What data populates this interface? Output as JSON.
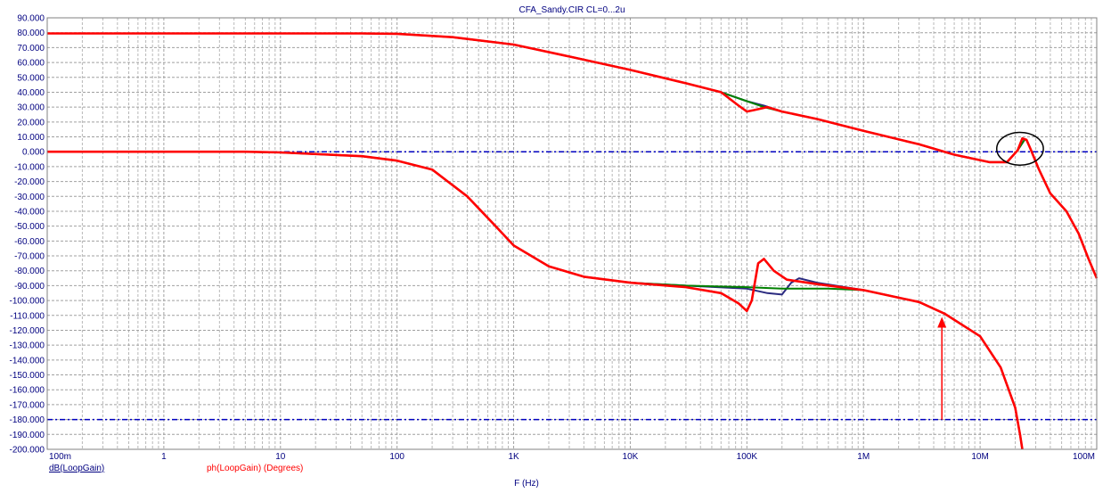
{
  "chart_data": {
    "type": "line",
    "title": "CFA_Sandy.CIR CL=0...2u",
    "xlabel": "F (Hz)",
    "x_scale": "log",
    "xlim": [
      0.1,
      100000000
    ],
    "ylim": [
      -200,
      90
    ],
    "grid": true,
    "legend": [
      {
        "text": "dB(LoopGain)",
        "color": "#000080"
      },
      {
        "text": "ph(LoopGain) (Degrees)",
        "color": "#ff0000"
      }
    ],
    "x_tick_labels": [
      {
        "value": 0.1,
        "label": "100m"
      },
      {
        "value": 1,
        "label": "1"
      },
      {
        "value": 10,
        "label": "10"
      },
      {
        "value": 100,
        "label": "100"
      },
      {
        "value": 1000,
        "label": "1K"
      },
      {
        "value": 10000,
        "label": "10K"
      },
      {
        "value": 100000,
        "label": "100K"
      },
      {
        "value": 1000000,
        "label": "1M"
      },
      {
        "value": 10000000,
        "label": "10M"
      },
      {
        "value": 100000000,
        "label": "100M"
      }
    ],
    "y_tick_labels": [
      {
        "value": 90,
        "label": "90.000"
      },
      {
        "value": 80,
        "label": "80.000"
      },
      {
        "value": 70,
        "label": "70.000"
      },
      {
        "value": 60,
        "label": "60.000"
      },
      {
        "value": 50,
        "label": "50.000"
      },
      {
        "value": 40,
        "label": "40.000"
      },
      {
        "value": 30,
        "label": "30.000"
      },
      {
        "value": 20,
        "label": "20.000"
      },
      {
        "value": 10,
        "label": "10.000"
      },
      {
        "value": 0,
        "label": "0.000"
      },
      {
        "value": -10,
        "label": "-10.000"
      },
      {
        "value": -20,
        "label": "-20.000"
      },
      {
        "value": -30,
        "label": "-30.000"
      },
      {
        "value": -40,
        "label": "-40.000"
      },
      {
        "value": -50,
        "label": "-50.000"
      },
      {
        "value": -60,
        "label": "-60.000"
      },
      {
        "value": -70,
        "label": "-70.000"
      },
      {
        "value": -80,
        "label": "-80.000"
      },
      {
        "value": -90,
        "label": "-90.000"
      },
      {
        "value": -100,
        "label": "-100.000"
      },
      {
        "value": -110,
        "label": "-110.000"
      },
      {
        "value": -120,
        "label": "-120.000"
      },
      {
        "value": -130,
        "label": "-130.000"
      },
      {
        "value": -140,
        "label": "-140.000"
      },
      {
        "value": -150,
        "label": "-150.000"
      },
      {
        "value": -160,
        "label": "-160.000"
      },
      {
        "value": -170,
        "label": "-170.000"
      },
      {
        "value": -180,
        "label": "-180.000"
      },
      {
        "value": -190,
        "label": "-190.000"
      },
      {
        "value": -200,
        "label": "-200.000"
      }
    ],
    "reference_lines": [
      {
        "y": 0,
        "color": "#0000c0",
        "style": "dash-dot"
      },
      {
        "y": -180,
        "color": "#0000c0",
        "style": "dash-dot"
      }
    ],
    "series": [
      {
        "color": "#2b2b80",
        "points": [
          [
            0.1,
            79.5
          ],
          [
            50,
            79.5
          ],
          [
            100,
            79.3
          ],
          [
            300,
            77
          ],
          [
            1000,
            72
          ],
          [
            3000,
            64
          ],
          [
            10000,
            55
          ],
          [
            30000,
            46
          ],
          [
            60000,
            40
          ],
          [
            100000,
            34
          ],
          [
            140000,
            31
          ],
          [
            200000,
            27
          ],
          [
            400000,
            22
          ],
          [
            1000000,
            14
          ],
          [
            3000000,
            5
          ],
          [
            6000000,
            -2
          ],
          [
            12000000,
            -7
          ],
          [
            17000000,
            -7
          ],
          [
            21000000,
            1
          ],
          [
            24000000,
            8
          ]
        ]
      },
      {
        "color": "#008000",
        "points": [
          [
            0.1,
            79.5
          ],
          [
            50,
            79.5
          ],
          [
            100,
            79.3
          ],
          [
            300,
            77
          ],
          [
            1000,
            72
          ],
          [
            3000,
            64
          ],
          [
            10000,
            55
          ],
          [
            30000,
            46
          ],
          [
            60000,
            40
          ],
          [
            100000,
            34
          ],
          [
            140000,
            30
          ],
          [
            200000,
            27
          ],
          [
            400000,
            22
          ],
          [
            1000000,
            14
          ],
          [
            3000000,
            5
          ],
          [
            6000000,
            -2
          ],
          [
            12000000,
            -7
          ],
          [
            17000000,
            -7
          ],
          [
            21000000,
            1
          ],
          [
            24000000,
            8
          ]
        ]
      },
      {
        "color": "#ff0000",
        "points": [
          [
            0.1,
            79.5
          ],
          [
            50,
            79.5
          ],
          [
            100,
            79.3
          ],
          [
            300,
            77
          ],
          [
            1000,
            72
          ],
          [
            3000,
            64
          ],
          [
            10000,
            55
          ],
          [
            30000,
            46
          ],
          [
            60000,
            40
          ],
          [
            85000,
            31
          ],
          [
            100000,
            27
          ],
          [
            115000,
            28
          ],
          [
            150000,
            30
          ],
          [
            200000,
            27
          ],
          [
            400000,
            22
          ],
          [
            1000000,
            14
          ],
          [
            3000000,
            5
          ],
          [
            6000000,
            -2
          ],
          [
            12000000,
            -7
          ],
          [
            17000000,
            -7
          ],
          [
            21000000,
            1
          ],
          [
            23000000,
            9
          ],
          [
            25000000,
            8
          ],
          [
            27000000,
            2
          ],
          [
            32000000,
            -12
          ],
          [
            40000000,
            -28
          ],
          [
            55000000,
            -40
          ],
          [
            70000000,
            -55
          ],
          [
            85000000,
            -72
          ],
          [
            100000000,
            -85
          ]
        ]
      },
      {
        "color": "#2b2b80",
        "points": [
          [
            0.1,
            0
          ],
          [
            5,
            0
          ],
          [
            10,
            -0.5
          ],
          [
            50,
            -3
          ],
          [
            100,
            -6
          ],
          [
            200,
            -12
          ],
          [
            400,
            -30
          ],
          [
            700,
            -50
          ],
          [
            1000,
            -63
          ],
          [
            2000,
            -77
          ],
          [
            4000,
            -84
          ],
          [
            10000,
            -88
          ],
          [
            30000,
            -90
          ],
          [
            100000,
            -92
          ],
          [
            150000,
            -95
          ],
          [
            200000,
            -96
          ],
          [
            240000,
            -88
          ],
          [
            280000,
            -85
          ],
          [
            400000,
            -88
          ],
          [
            1000000,
            -93
          ],
          [
            3000000,
            -101
          ],
          [
            5000000,
            -109
          ],
          [
            10000000,
            -124
          ],
          [
            15000000,
            -145
          ],
          [
            20000000,
            -172
          ],
          [
            22000000,
            -190
          ],
          [
            23000000,
            -200
          ]
        ]
      },
      {
        "color": "#008000",
        "points": [
          [
            0.1,
            0
          ],
          [
            5,
            0
          ],
          [
            10,
            -0.5
          ],
          [
            50,
            -3
          ],
          [
            100,
            -6
          ],
          [
            200,
            -12
          ],
          [
            400,
            -30
          ],
          [
            700,
            -50
          ],
          [
            1000,
            -63
          ],
          [
            2000,
            -77
          ],
          [
            4000,
            -84
          ],
          [
            10000,
            -88
          ],
          [
            30000,
            -90
          ],
          [
            100000,
            -91
          ],
          [
            200000,
            -92
          ],
          [
            500000,
            -92
          ],
          [
            1000000,
            -93
          ],
          [
            3000000,
            -101
          ],
          [
            5000000,
            -109
          ],
          [
            10000000,
            -124
          ],
          [
            15000000,
            -145
          ],
          [
            20000000,
            -172
          ],
          [
            22000000,
            -190
          ],
          [
            23000000,
            -200
          ]
        ]
      },
      {
        "color": "#ff0000",
        "points": [
          [
            0.1,
            0
          ],
          [
            5,
            0
          ],
          [
            10,
            -0.5
          ],
          [
            50,
            -3
          ],
          [
            100,
            -6
          ],
          [
            200,
            -12
          ],
          [
            400,
            -30
          ],
          [
            700,
            -50
          ],
          [
            1000,
            -63
          ],
          [
            2000,
            -77
          ],
          [
            4000,
            -84
          ],
          [
            10000,
            -88
          ],
          [
            30000,
            -91
          ],
          [
            60000,
            -95
          ],
          [
            85000,
            -102
          ],
          [
            100000,
            -107
          ],
          [
            110000,
            -100
          ],
          [
            125000,
            -75
          ],
          [
            140000,
            -72
          ],
          [
            170000,
            -80
          ],
          [
            220000,
            -86
          ],
          [
            400000,
            -89
          ],
          [
            1000000,
            -93
          ],
          [
            3000000,
            -101
          ],
          [
            5000000,
            -109
          ],
          [
            10000000,
            -124
          ],
          [
            15000000,
            -145
          ],
          [
            20000000,
            -172
          ],
          [
            22000000,
            -190
          ],
          [
            23000000,
            -200
          ]
        ]
      }
    ],
    "annotations": [
      {
        "type": "ellipse",
        "center": [
          22000000,
          2
        ],
        "radius_decades": 0.2,
        "radius_y": 11,
        "color": "#000000"
      },
      {
        "type": "arrow",
        "x": 4700000,
        "y_from": -180,
        "y_to": -111,
        "color": "#ff0000"
      }
    ]
  }
}
